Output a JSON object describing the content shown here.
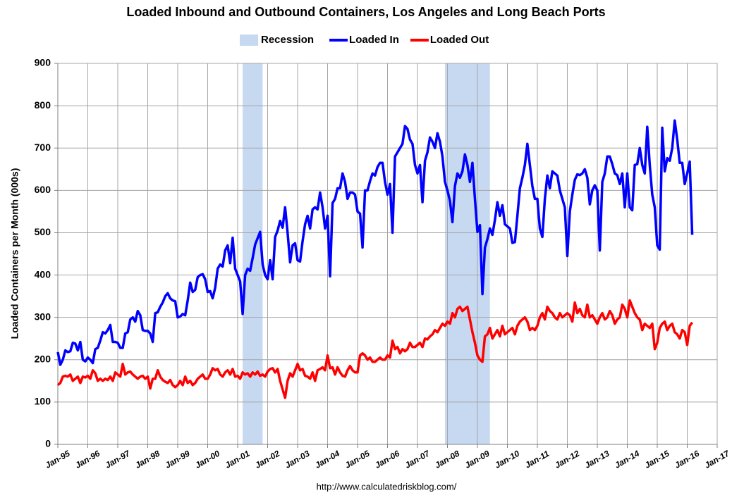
{
  "chart_data": {
    "type": "line",
    "title": "Loaded Inbound and Outbound Containers, Los Angeles and Long Beach Ports",
    "y_label": "Loaded Containers per Month (000s)",
    "source": "http://www.calculatedriskblog.com/",
    "ylim": [
      0,
      900
    ],
    "yticks": [
      0,
      100,
      200,
      300,
      400,
      500,
      600,
      700,
      800,
      900
    ],
    "xlim": [
      "1995-01",
      "2017-01"
    ],
    "xticks": [
      {
        "value": "1995-01",
        "label": "Jan-95"
      },
      {
        "value": "1996-01",
        "label": "Jan-96"
      },
      {
        "value": "1997-01",
        "label": "Jan-97"
      },
      {
        "value": "1998-01",
        "label": "Jan-98"
      },
      {
        "value": "1999-01",
        "label": "Jan-99"
      },
      {
        "value": "2000-01",
        "label": "Jan-00"
      },
      {
        "value": "2001-01",
        "label": "Jan-01"
      },
      {
        "value": "2002-01",
        "label": "Jan-02"
      },
      {
        "value": "2003-01",
        "label": "Jan-03"
      },
      {
        "value": "2004-01",
        "label": "Jan-04"
      },
      {
        "value": "2005-01",
        "label": "Jan-05"
      },
      {
        "value": "2006-01",
        "label": "Jan-06"
      },
      {
        "value": "2007-01",
        "label": "Jan-07"
      },
      {
        "value": "2008-01",
        "label": "Jan-08"
      },
      {
        "value": "2009-01",
        "label": "Jan-09"
      },
      {
        "value": "2010-01",
        "label": "Jan-10"
      },
      {
        "value": "2011-01",
        "label": "Jan-11"
      },
      {
        "value": "2012-01",
        "label": "Jan-12"
      },
      {
        "value": "2013-01",
        "label": "Jan-13"
      },
      {
        "value": "2014-01",
        "label": "Jan-14"
      },
      {
        "value": "2015-01",
        "label": "Jan-15"
      },
      {
        "value": "2016-01",
        "label": "Jan-16"
      },
      {
        "value": "2017-01",
        "label": "Jan-17"
      }
    ],
    "grid": true,
    "recession": {
      "name": "Recession",
      "color": "#c6d9f1",
      "periods": [
        [
          "2001-03",
          "2001-11"
        ],
        [
          "2007-12",
          "2009-06"
        ]
      ]
    },
    "x": [
      "1995-01",
      "1995-02",
      "1995-03",
      "1995-04",
      "1995-05",
      "1995-06",
      "1995-07",
      "1995-08",
      "1995-09",
      "1995-10",
      "1995-11",
      "1995-12",
      "1996-01",
      "1996-02",
      "1996-03",
      "1996-04",
      "1996-05",
      "1996-06",
      "1996-07",
      "1996-08",
      "1996-09",
      "1996-10",
      "1996-11",
      "1996-12",
      "1997-01",
      "1997-02",
      "1997-03",
      "1997-04",
      "1997-05",
      "1997-06",
      "1997-07",
      "1997-08",
      "1997-09",
      "1997-10",
      "1997-11",
      "1997-12",
      "1998-01",
      "1998-02",
      "1998-03",
      "1998-04",
      "1998-05",
      "1998-06",
      "1998-07",
      "1998-08",
      "1998-09",
      "1998-10",
      "1998-11",
      "1998-12",
      "1999-01",
      "1999-02",
      "1999-03",
      "1999-04",
      "1999-05",
      "1999-06",
      "1999-07",
      "1999-08",
      "1999-09",
      "1999-10",
      "1999-11",
      "1999-12",
      "2000-01",
      "2000-02",
      "2000-03",
      "2000-04",
      "2000-05",
      "2000-06",
      "2000-07",
      "2000-08",
      "2000-09",
      "2000-10",
      "2000-11",
      "2000-12",
      "2001-01",
      "2001-02",
      "2001-03",
      "2001-04",
      "2001-05",
      "2001-06",
      "2001-07",
      "2001-08",
      "2001-09",
      "2001-10",
      "2001-11",
      "2001-12",
      "2002-01",
      "2002-02",
      "2002-03",
      "2002-04",
      "2002-05",
      "2002-06",
      "2002-07",
      "2002-08",
      "2002-09",
      "2002-10",
      "2002-11",
      "2002-12",
      "2003-01",
      "2003-02",
      "2003-03",
      "2003-04",
      "2003-05",
      "2003-06",
      "2003-07",
      "2003-08",
      "2003-09",
      "2003-10",
      "2003-11",
      "2003-12",
      "2004-01",
      "2004-02",
      "2004-03",
      "2004-04",
      "2004-05",
      "2004-06",
      "2004-07",
      "2004-08",
      "2004-09",
      "2004-10",
      "2004-11",
      "2004-12",
      "2005-01",
      "2005-02",
      "2005-03",
      "2005-04",
      "2005-05",
      "2005-06",
      "2005-07",
      "2005-08",
      "2005-09",
      "2005-10",
      "2005-11",
      "2005-12",
      "2006-01",
      "2006-02",
      "2006-03",
      "2006-04",
      "2006-05",
      "2006-06",
      "2006-07",
      "2006-08",
      "2006-09",
      "2006-10",
      "2006-11",
      "2006-12",
      "2007-01",
      "2007-02",
      "2007-03",
      "2007-04",
      "2007-05",
      "2007-06",
      "2007-07",
      "2007-08",
      "2007-09",
      "2007-10",
      "2007-11",
      "2007-12",
      "2008-01",
      "2008-02",
      "2008-03",
      "2008-04",
      "2008-05",
      "2008-06",
      "2008-07",
      "2008-08",
      "2008-09",
      "2008-10",
      "2008-11",
      "2008-12",
      "2009-01",
      "2009-02",
      "2009-03",
      "2009-04",
      "2009-05",
      "2009-06",
      "2009-07",
      "2009-08",
      "2009-09",
      "2009-10",
      "2009-11",
      "2009-12",
      "2010-01",
      "2010-02",
      "2010-03",
      "2010-04",
      "2010-05",
      "2010-06",
      "2010-07",
      "2010-08",
      "2010-09",
      "2010-10",
      "2010-11",
      "2010-12",
      "2011-01",
      "2011-02",
      "2011-03",
      "2011-04",
      "2011-05",
      "2011-06",
      "2011-07",
      "2011-08",
      "2011-09",
      "2011-10",
      "2011-11",
      "2011-12",
      "2012-01",
      "2012-02",
      "2012-03",
      "2012-04",
      "2012-05",
      "2012-06",
      "2012-07",
      "2012-08",
      "2012-09",
      "2012-10",
      "2012-11",
      "2012-12",
      "2013-01",
      "2013-02",
      "2013-03",
      "2013-04",
      "2013-05",
      "2013-06",
      "2013-07",
      "2013-08",
      "2013-09",
      "2013-10",
      "2013-11",
      "2013-12",
      "2014-01",
      "2014-02",
      "2014-03",
      "2014-04",
      "2014-05",
      "2014-06",
      "2014-07",
      "2014-08",
      "2014-09",
      "2014-10",
      "2014-11",
      "2014-12",
      "2015-01",
      "2015-02",
      "2015-03",
      "2015-04",
      "2015-05",
      "2015-06",
      "2015-07",
      "2015-08",
      "2015-09",
      "2015-10",
      "2015-11",
      "2015-12",
      "2016-01",
      "2016-02",
      "2016-03"
    ],
    "series": [
      {
        "name": "Loaded In",
        "color": "#0000ff",
        "values": [
          218,
          188,
          200,
          222,
          218,
          220,
          240,
          238,
          222,
          242,
          200,
          196,
          205,
          200,
          192,
          225,
          228,
          245,
          265,
          262,
          270,
          282,
          242,
          242,
          240,
          228,
          228,
          262,
          265,
          295,
          300,
          290,
          315,
          305,
          270,
          268,
          268,
          262,
          242,
          310,
          312,
          325,
          335,
          350,
          357,
          345,
          340,
          338,
          300,
          302,
          308,
          305,
          340,
          382,
          360,
          365,
          395,
          400,
          402,
          390,
          360,
          362,
          345,
          370,
          415,
          425,
          420,
          458,
          470,
          428,
          488,
          415,
          400,
          385,
          308,
          400,
          415,
          410,
          440,
          472,
          487,
          502,
          425,
          400,
          390,
          435,
          390,
          490,
          505,
          528,
          512,
          560,
          500,
          430,
          470,
          475,
          435,
          432,
          480,
          520,
          540,
          510,
          555,
          560,
          555,
          595,
          560,
          510,
          540,
          397,
          570,
          580,
          605,
          605,
          640,
          620,
          580,
          595,
          595,
          590,
          550,
          545,
          465,
          600,
          600,
          622,
          640,
          635,
          655,
          665,
          665,
          620,
          590,
          615,
          500,
          680,
          690,
          700,
          710,
          752,
          745,
          720,
          710,
          660,
          640,
          660,
          572,
          670,
          690,
          725,
          715,
          700,
          735,
          715,
          680,
          620,
          600,
          575,
          525,
          610,
          640,
          630,
          645,
          685,
          660,
          620,
          665,
          580,
          502,
          518,
          355,
          465,
          485,
          510,
          495,
          530,
          572,
          540,
          565,
          520,
          515,
          510,
          476,
          478,
          540,
          605,
          630,
          660,
          710,
          660,
          610,
          580,
          580,
          510,
          490,
          580,
          635,
          605,
          645,
          640,
          635,
          600,
          580,
          560,
          445,
          550,
          590,
          625,
          638,
          636,
          640,
          650,
          630,
          567,
          600,
          612,
          600,
          458,
          620,
          640,
          680,
          680,
          662,
          640,
          636,
          615,
          640,
          560,
          640,
          560,
          553,
          660,
          662,
          700,
          660,
          640,
          750,
          660,
          590,
          560,
          470,
          460,
          748,
          645,
          676,
          670,
          700,
          765,
          720,
          665,
          665,
          615,
          640,
          668,
          495
        ]
      },
      {
        "name": "Loaded Out",
        "color": "#ff0000",
        "values": [
          140,
          145,
          160,
          162,
          160,
          165,
          150,
          155,
          160,
          145,
          160,
          158,
          162,
          155,
          175,
          168,
          150,
          155,
          150,
          155,
          152,
          160,
          150,
          170,
          165,
          160,
          190,
          165,
          170,
          172,
          165,
          160,
          155,
          160,
          162,
          155,
          160,
          132,
          155,
          155,
          175,
          160,
          152,
          148,
          145,
          152,
          140,
          135,
          140,
          150,
          140,
          160,
          145,
          150,
          140,
          145,
          155,
          160,
          165,
          155,
          155,
          165,
          180,
          175,
          178,
          165,
          160,
          170,
          175,
          165,
          178,
          160,
          162,
          155,
          170,
          165,
          168,
          160,
          170,
          165,
          172,
          162,
          165,
          160,
          172,
          178,
          180,
          170,
          178,
          150,
          130,
          110,
          150,
          168,
          160,
          175,
          190,
          175,
          178,
          162,
          160,
          155,
          170,
          150,
          175,
          178,
          182,
          175,
          210,
          180,
          182,
          165,
          182,
          170,
          162,
          160,
          175,
          185,
          175,
          170,
          170,
          210,
          215,
          210,
          200,
          205,
          195,
          195,
          200,
          205,
          200,
          200,
          210,
          205,
          245,
          225,
          230,
          215,
          225,
          220,
          225,
          240,
          230,
          230,
          235,
          240,
          230,
          250,
          248,
          255,
          260,
          270,
          265,
          275,
          285,
          280,
          290,
          285,
          310,
          300,
          320,
          325,
          315,
          320,
          325,
          295,
          265,
          240,
          210,
          200,
          195,
          255,
          260,
          275,
          250,
          260,
          270,
          255,
          280,
          260,
          265,
          270,
          275,
          260,
          280,
          290,
          295,
          300,
          290,
          270,
          275,
          270,
          280,
          300,
          310,
          295,
          325,
          315,
          310,
          300,
          295,
          310,
          300,
          305,
          310,
          305,
          290,
          335,
          310,
          320,
          305,
          300,
          330,
          300,
          305,
          295,
          285,
          300,
          310,
          295,
          300,
          315,
          305,
          285,
          295,
          300,
          330,
          320,
          300,
          340,
          325,
          310,
          300,
          295,
          270,
          285,
          280,
          275,
          285,
          225,
          240,
          275,
          285,
          290,
          270,
          280,
          285,
          265,
          260,
          250,
          270,
          265,
          235,
          280,
          288
        ]
      }
    ]
  }
}
